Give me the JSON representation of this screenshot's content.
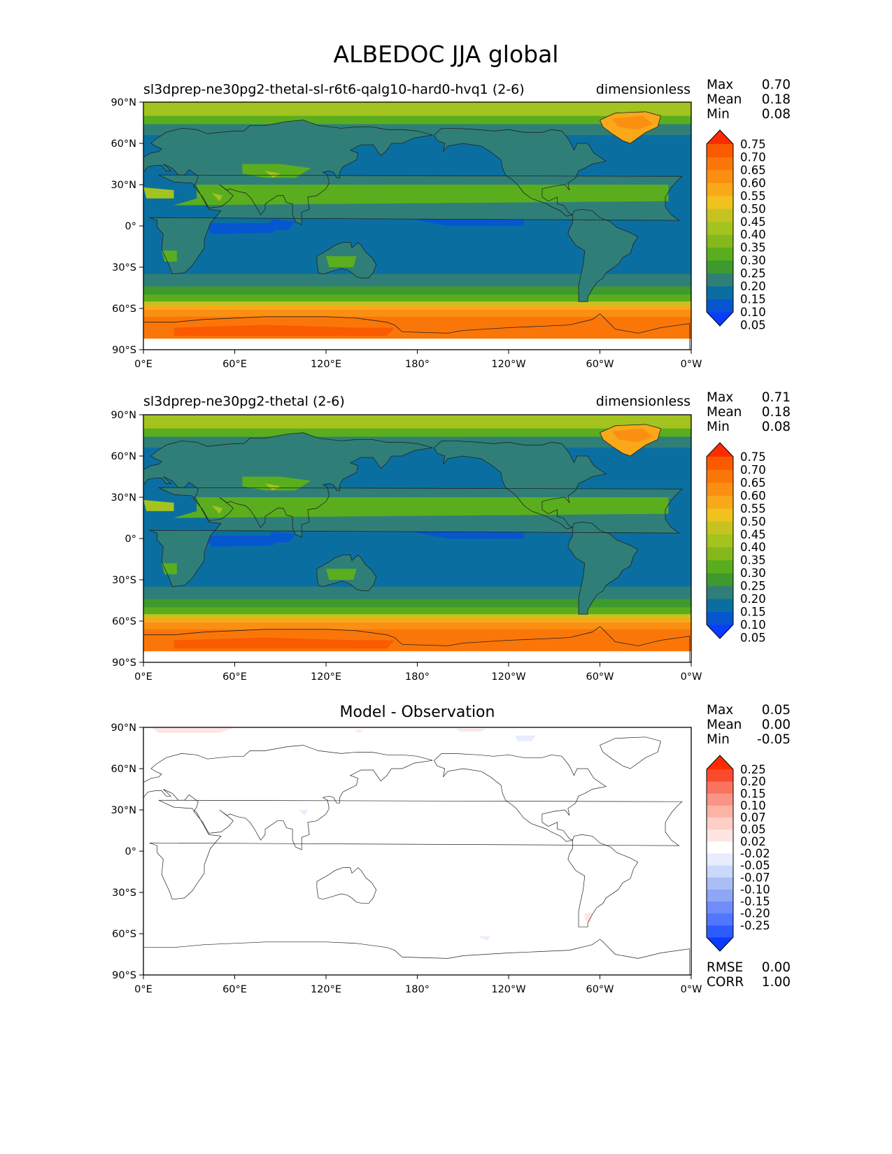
{
  "figure_title": "ALBEDOC JJA global",
  "stat_labels": {
    "max": "Max",
    "mean": "Mean",
    "min": "Min",
    "rmse": "RMSE",
    "corr": "CORR"
  },
  "lon_ticks": [
    "0°E",
    "60°E",
    "120°E",
    "180°",
    "120°W",
    "60°W",
    "0°W"
  ],
  "lat_ticks": [
    "90°N",
    "60°N",
    "30°N",
    "0°",
    "30°S",
    "60°S",
    "90°S"
  ],
  "colors": {
    "field_levels": [
      "#0a3cff",
      "#0656d0",
      "#0a6fa0",
      "#2f7f78",
      "#3e9a2c",
      "#5aae1e",
      "#84b81c",
      "#a3c31f",
      "#c6c321",
      "#f0c21e",
      "#f9a81a",
      "#fb8f12",
      "#fb7608",
      "#fa5a00",
      "#ff2c00"
    ],
    "diff_levels": [
      "#0a3cff",
      "#2c5cff",
      "#5276ff",
      "#6e8dfa",
      "#8fa6f6",
      "#aabdf6",
      "#cad8fb",
      "#e7edfd",
      "#ffffff",
      "#fde6e2",
      "#fdcfc6",
      "#fcb3a6",
      "#fb9484",
      "#fa735f",
      "#fa4a2e",
      "#ff2c00"
    ]
  },
  "panels": [
    {
      "title": "sl3dprep-ne30pg2-thetal-sl-r6t6-qalg10-hard0-hvq1 (2-6)",
      "units": "dimensionless",
      "stats": {
        "max": "0.70",
        "mean": "0.18",
        "min": "0.08"
      },
      "colorbar_labels": [
        "0.75",
        "0.70",
        "0.65",
        "0.60",
        "0.55",
        "0.50",
        "0.45",
        "0.40",
        "0.35",
        "0.30",
        "0.25",
        "0.20",
        "0.15",
        "0.10",
        "0.05"
      ]
    },
    {
      "title": "sl3dprep-ne30pg2-thetal (2-6)",
      "units": "dimensionless",
      "stats": {
        "max": "0.71",
        "mean": "0.18",
        "min": "0.08"
      },
      "colorbar_labels": [
        "0.75",
        "0.70",
        "0.65",
        "0.60",
        "0.55",
        "0.50",
        "0.45",
        "0.40",
        "0.35",
        "0.30",
        "0.25",
        "0.20",
        "0.15",
        "0.10",
        "0.05"
      ]
    },
    {
      "title": "Model - Observation",
      "stats": {
        "max": "0.05",
        "mean": "0.00",
        "min": "-0.05",
        "rmse": "0.00",
        "corr": "1.00"
      },
      "colorbar_labels": [
        "0.25",
        "0.20",
        "0.15",
        "0.10",
        "0.07",
        "0.05",
        "0.02",
        "-0.02",
        "-0.05",
        "-0.07",
        "-0.10",
        "-0.15",
        "-0.20",
        "-0.25"
      ]
    }
  ],
  "chart_data": {
    "type": "heatmap",
    "title": "ALBEDOC JJA global",
    "x_range": [
      "0°E",
      "0°W"
    ],
    "y_range": [
      "90°S",
      "90°N"
    ],
    "maps": [
      {
        "name": "sl3dprep-ne30pg2-thetal-sl-r6t6-qalg10-hard0-hvq1 (2-6)",
        "levels": [
          0.05,
          0.1,
          0.15,
          0.2,
          0.25,
          0.3,
          0.35,
          0.4,
          0.45,
          0.5,
          0.55,
          0.6,
          0.65,
          0.7,
          0.75
        ],
        "zonal_albedo": [
          {
            "lat": 85,
            "value": 0.4
          },
          {
            "lat": 75,
            "value": 0.22
          },
          {
            "lat": 60,
            "value": 0.17
          },
          {
            "lat": 30,
            "value": 0.12
          },
          {
            "lat": 0,
            "value": 0.12
          },
          {
            "lat": -30,
            "value": 0.13
          },
          {
            "lat": -45,
            "value": 0.18
          },
          {
            "lat": -55,
            "value": 0.3
          },
          {
            "lat": -62,
            "value": 0.6
          },
          {
            "lat": -72,
            "value": 0.68
          }
        ],
        "max": 0.7,
        "mean": 0.18,
        "min": 0.08
      },
      {
        "name": "sl3dprep-ne30pg2-thetal (2-6)",
        "levels": [
          0.05,
          0.1,
          0.15,
          0.2,
          0.25,
          0.3,
          0.35,
          0.4,
          0.45,
          0.5,
          0.55,
          0.6,
          0.65,
          0.7,
          0.75
        ],
        "zonal_albedo": [
          {
            "lat": 85,
            "value": 0.4
          },
          {
            "lat": 75,
            "value": 0.22
          },
          {
            "lat": 60,
            "value": 0.17
          },
          {
            "lat": 30,
            "value": 0.12
          },
          {
            "lat": 0,
            "value": 0.12
          },
          {
            "lat": -30,
            "value": 0.13
          },
          {
            "lat": -45,
            "value": 0.18
          },
          {
            "lat": -55,
            "value": 0.3
          },
          {
            "lat": -62,
            "value": 0.6
          },
          {
            "lat": -72,
            "value": 0.69
          }
        ],
        "max": 0.71,
        "mean": 0.18,
        "min": 0.08
      },
      {
        "name": "Model - Observation",
        "levels": [
          -0.25,
          -0.2,
          -0.15,
          -0.1,
          -0.07,
          -0.05,
          -0.02,
          0.02,
          0.05,
          0.07,
          0.1,
          0.15,
          0.2,
          0.25
        ],
        "max": 0.05,
        "mean": 0.0,
        "min": -0.05,
        "rmse": 0.0,
        "corr": 1.0
      }
    ]
  }
}
